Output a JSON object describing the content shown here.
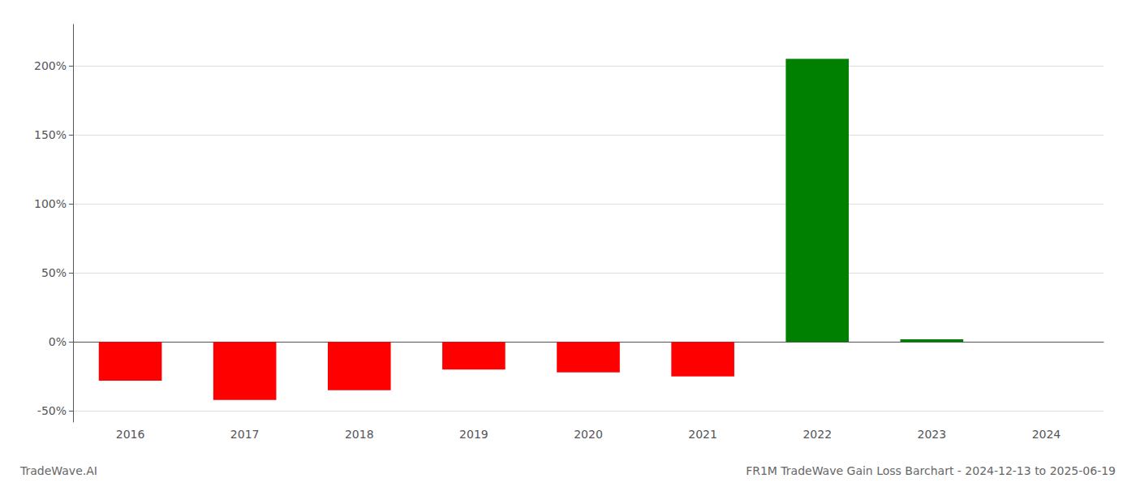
{
  "chart_data": {
    "type": "bar",
    "title": "FR1M TradeWave Gain Loss Barchart - 2024-12-13 to 2025-06-19",
    "annotations": [
      "TradeWave.AI"
    ],
    "categories": [
      "2016",
      "2017",
      "2018",
      "2019",
      "2020",
      "2021",
      "2022",
      "2023",
      "2024"
    ],
    "values": [
      -28,
      -42,
      -35,
      -20,
      -22,
      -25,
      205,
      2,
      0
    ],
    "colors": [
      "#ff0000",
      "#ff0000",
      "#ff0000",
      "#ff0000",
      "#ff0000",
      "#ff0000",
      "#008000",
      "#008000",
      "#008000"
    ],
    "ylim": [
      -58,
      230
    ],
    "yticks": [
      {
        "value": -50,
        "label": "-50%"
      },
      {
        "value": 0,
        "label": "0%"
      },
      {
        "value": 50,
        "label": "50%"
      },
      {
        "value": 100,
        "label": "100%"
      },
      {
        "value": 150,
        "label": "150%"
      },
      {
        "value": 200,
        "label": "200%"
      }
    ],
    "grid": true
  }
}
